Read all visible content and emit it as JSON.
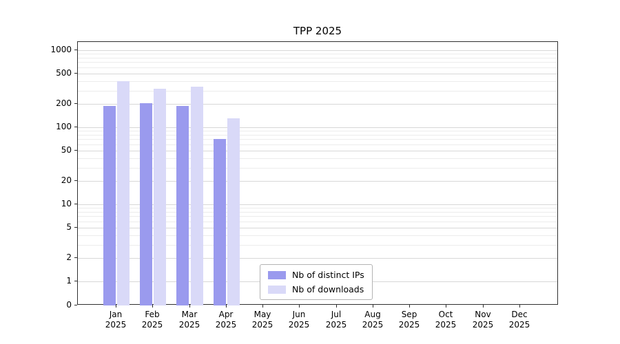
{
  "title": "TPP 2025",
  "chart_data": {
    "type": "bar",
    "title": "TPP 2025",
    "yscale": "symlog",
    "ylim": [
      0,
      1300
    ],
    "grid": true,
    "legend_position": "lower center inside",
    "y_ticks": [
      0,
      1,
      2,
      5,
      10,
      20,
      50,
      100,
      200,
      500,
      1000
    ],
    "months": [
      "Jan",
      "Feb",
      "Mar",
      "Apr",
      "May",
      "Jun",
      "Jul",
      "Aug",
      "Sep",
      "Oct",
      "Nov",
      "Dec"
    ],
    "year_label": "2025",
    "series": [
      {
        "name": "Nb of distinct IPs",
        "color": "#9a9aee",
        "values": [
          190,
          205,
          190,
          70,
          null,
          null,
          null,
          null,
          null,
          null,
          null,
          null
        ]
      },
      {
        "name": "Nb of downloads",
        "color": "#d9d9f8",
        "values": [
          400,
          315,
          340,
          130,
          null,
          null,
          null,
          null,
          null,
          null,
          null,
          null
        ]
      }
    ]
  }
}
